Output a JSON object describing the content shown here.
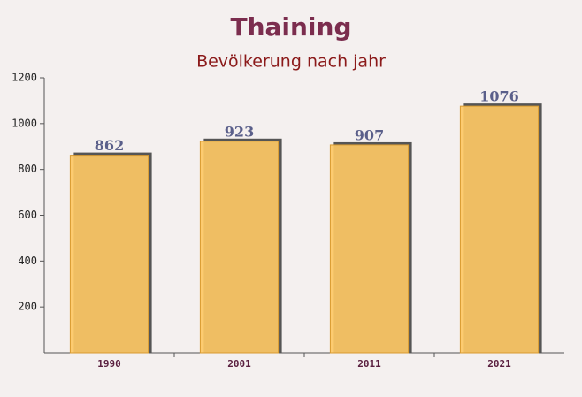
{
  "chart_data": {
    "type": "bar",
    "title": "Thaining",
    "subtitle": "Bevölkerung nach jahr",
    "categories": [
      "1990",
      "2001",
      "2011",
      "2021"
    ],
    "values": [
      862,
      923,
      907,
      1076
    ],
    "color": "#fdc865",
    "ylim": [
      0,
      1200
    ],
    "yticks": [
      200,
      400,
      600,
      800,
      1000,
      1200
    ]
  }
}
